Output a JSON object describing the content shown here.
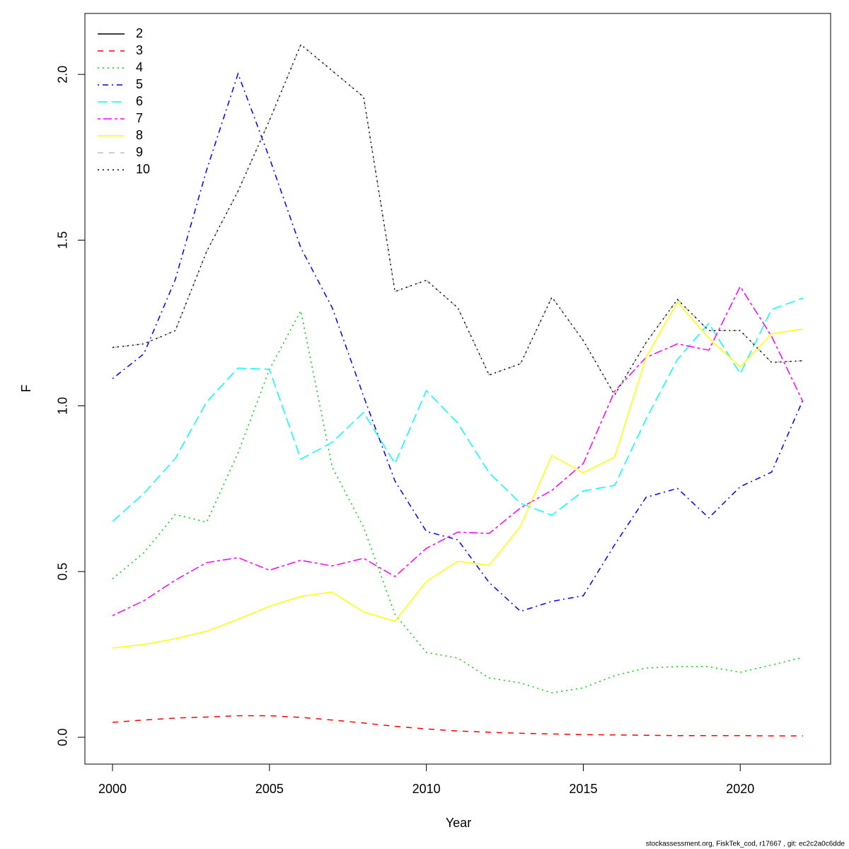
{
  "chart_data": {
    "type": "line",
    "xlabel": "Year",
    "ylabel": "F",
    "caption": "stockassessment.org, FiskTek_cod, r17667 , git: ec2c2a0c6dde",
    "x": [
      2000,
      2001,
      2002,
      2003,
      2004,
      2005,
      2006,
      2007,
      2008,
      2009,
      2010,
      2011,
      2012,
      2013,
      2014,
      2015,
      2016,
      2017,
      2018,
      2019,
      2020,
      2021,
      2022
    ],
    "xlim": [
      1999.12,
      2022.88
    ],
    "xticks": [
      2000,
      2005,
      2010,
      2015,
      2020
    ],
    "ylim": [
      -0.081,
      2.184
    ],
    "yticks": [
      {
        "value": 0,
        "label": "0.0"
      },
      0.5,
      {
        "value": 1,
        "label": "1.0"
      },
      1.5,
      {
        "value": 2,
        "label": "2.0"
      }
    ],
    "legend": "top-left",
    "series": [
      {
        "name": "2",
        "color": "#000000",
        "linestyle": "solid",
        "values": [
          null,
          null,
          null,
          null,
          null,
          null,
          null,
          null,
          null,
          null,
          null,
          null,
          null,
          null,
          null,
          null,
          null,
          null,
          null,
          null,
          null,
          null,
          null
        ]
      },
      {
        "name": "3",
        "color": "#ff0000",
        "linestyle": "dashed",
        "values": [
          0.045,
          0.052,
          0.058,
          0.061,
          0.065,
          0.065,
          0.06,
          0.052,
          0.043,
          0.033,
          0.025,
          0.019,
          0.015,
          0.012,
          0.01,
          0.008,
          0.007,
          0.006,
          0.005,
          0.005,
          0.005,
          0.004,
          0.004
        ]
      },
      {
        "name": "4",
        "color": "#00cd00",
        "linestyle": "dotted",
        "values": [
          0.478,
          0.557,
          0.672,
          0.649,
          0.858,
          1.11,
          1.287,
          0.815,
          0.634,
          0.371,
          0.256,
          0.239,
          0.179,
          0.164,
          0.134,
          0.149,
          0.186,
          0.209,
          0.213,
          0.213,
          0.196,
          0.218,
          0.241
        ]
      },
      {
        "name": "5",
        "color": "#0000ff",
        "linestyle": "dotdash",
        "values": [
          1.082,
          1.157,
          1.381,
          1.712,
          2.002,
          1.748,
          1.477,
          1.296,
          1.029,
          0.773,
          0.621,
          0.596,
          0.467,
          0.38,
          0.41,
          0.427,
          0.581,
          0.724,
          0.751,
          0.662,
          0.756,
          0.8,
          1.018
        ]
      },
      {
        "name": "6",
        "color": "#00ffff",
        "linestyle": "longdash",
        "values": [
          0.651,
          0.736,
          0.841,
          1.012,
          1.114,
          1.11,
          0.839,
          0.89,
          0.98,
          0.826,
          1.046,
          0.948,
          0.798,
          0.706,
          0.67,
          0.743,
          0.76,
          0.96,
          1.14,
          1.249,
          1.097,
          1.291,
          1.325
        ]
      },
      {
        "name": "7",
        "color": "#ff00ff",
        "linestyle": "twodash",
        "values": [
          0.367,
          0.412,
          0.474,
          0.527,
          0.542,
          0.504,
          0.534,
          0.517,
          0.54,
          0.485,
          0.57,
          0.619,
          0.615,
          0.692,
          0.745,
          0.826,
          1.044,
          1.146,
          1.187,
          1.168,
          1.36,
          1.21,
          1.012
        ]
      },
      {
        "name": "8",
        "color": "#ffff00",
        "linestyle": "solid",
        "values": [
          0.269,
          0.28,
          0.297,
          0.32,
          0.356,
          0.395,
          0.425,
          0.438,
          0.378,
          0.35,
          0.47,
          0.531,
          0.519,
          0.636,
          0.85,
          0.798,
          0.845,
          1.146,
          1.313,
          1.204,
          1.118,
          1.217,
          1.232
        ]
      },
      {
        "name": "9",
        "color": "#bebebe",
        "linestyle": "dashed",
        "values": [
          1.176,
          1.187,
          1.227,
          1.466,
          1.648,
          1.861,
          2.09,
          2.011,
          1.932,
          1.345,
          1.379,
          1.296,
          1.093,
          1.127,
          1.328,
          1.197,
          1.033,
          1.191,
          1.321,
          1.227,
          1.227,
          1.131,
          1.136
        ]
      },
      {
        "name": "10",
        "color": "#000000",
        "linestyle": "dotted",
        "values": [
          1.176,
          1.187,
          1.227,
          1.466,
          1.648,
          1.861,
          2.09,
          2.011,
          1.932,
          1.345,
          1.379,
          1.296,
          1.093,
          1.127,
          1.328,
          1.197,
          1.033,
          1.191,
          1.321,
          1.227,
          1.227,
          1.131,
          1.136
        ]
      }
    ]
  }
}
